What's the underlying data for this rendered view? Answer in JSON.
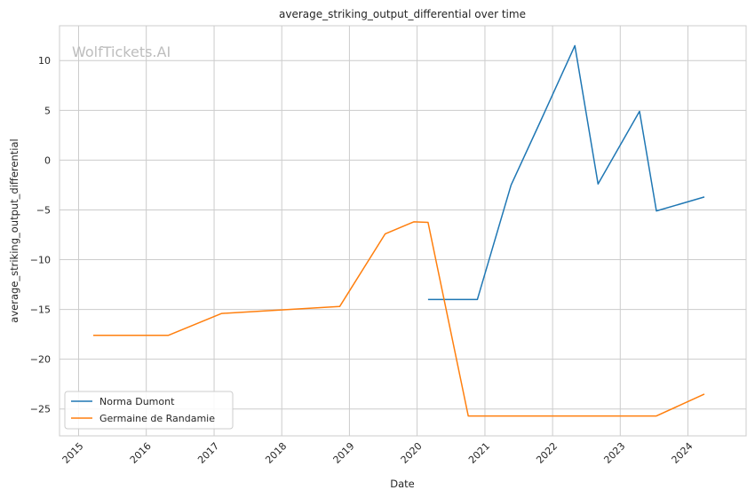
{
  "chart_data": {
    "type": "line",
    "title": "average_striking_output_differential over time",
    "xlabel": "Date",
    "ylabel": "average_striking_output_differential",
    "watermark": "WolfTickets.AI",
    "xlim": [
      "2014-09-20",
      "2024-11-10"
    ],
    "ylim": [
      -27.7,
      13.5
    ],
    "x_ticks": [
      "2015",
      "2016",
      "2017",
      "2018",
      "2019",
      "2020",
      "2021",
      "2022",
      "2023",
      "2024"
    ],
    "y_ticks": [
      10,
      5,
      0,
      -5,
      -10,
      -15,
      -20,
      -25
    ],
    "y_tick_labels": [
      "10",
      "5",
      "0",
      "−5",
      "−10",
      "−15",
      "−20",
      "−25"
    ],
    "grid": true,
    "legend_position": "lower-left",
    "series": [
      {
        "name": "Norma Dumont",
        "color": "#1f77b4",
        "points": [
          {
            "x": "2020-02-29",
            "y": -14.0
          },
          {
            "x": "2020-11-21",
            "y": -14.0
          },
          {
            "x": "2021-05-22",
            "y": -2.5
          },
          {
            "x": "2021-10-30",
            "y": 4.0
          },
          {
            "x": "2022-05-01",
            "y": 11.5
          },
          {
            "x": "2022-09-03",
            "y": -2.4
          },
          {
            "x": "2023-04-15",
            "y": 4.9
          },
          {
            "x": "2023-07-15",
            "y": -5.1
          },
          {
            "x": "2024-03-30",
            "y": -3.7
          }
        ]
      },
      {
        "name": "Germaine de Randamie",
        "color": "#ff7f0e",
        "points": [
          {
            "x": "2015-03-21",
            "y": -17.6
          },
          {
            "x": "2016-04-30",
            "y": -17.6
          },
          {
            "x": "2017-02-11",
            "y": -15.4
          },
          {
            "x": "2018-11-10",
            "y": -14.7
          },
          {
            "x": "2019-07-13",
            "y": -7.4
          },
          {
            "x": "2019-12-14",
            "y": -6.2
          },
          {
            "x": "2020-02-29",
            "y": -6.25
          },
          {
            "x": "2020-10-03",
            "y": -25.7
          },
          {
            "x": "2023-07-15",
            "y": -25.7
          },
          {
            "x": "2024-03-30",
            "y": -23.5
          }
        ]
      }
    ]
  }
}
